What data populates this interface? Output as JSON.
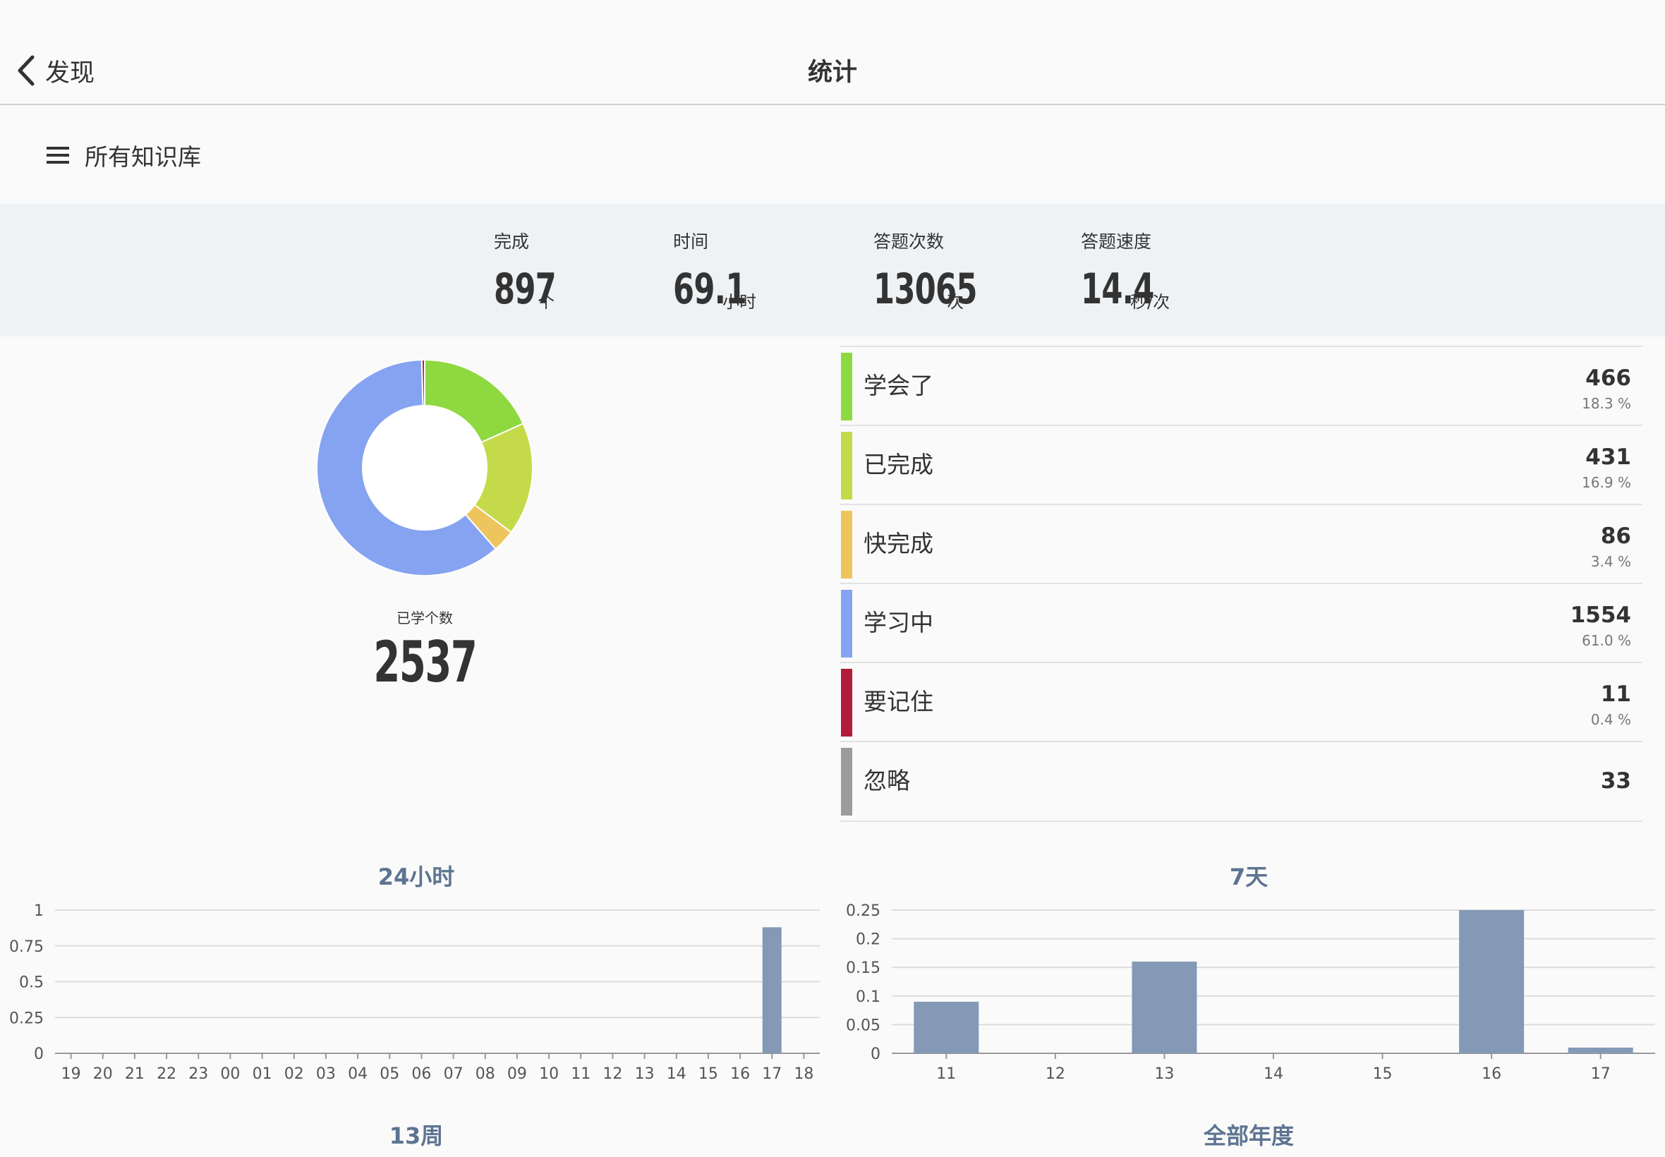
{
  "nav": {
    "back_label": "发现",
    "title": "统计"
  },
  "library": {
    "label": "所有知识库"
  },
  "summary": {
    "completed": {
      "label": "完成",
      "value": "897",
      "unit": "个"
    },
    "time": {
      "label": "时间",
      "value": "69.1",
      "unit": "小时"
    },
    "answers": {
      "label": "答题次数",
      "value": "13065",
      "unit": "次"
    },
    "speed": {
      "label": "答题速度",
      "value": "14.4",
      "unit": "秒/次"
    }
  },
  "donut": {
    "caption": "已学个数",
    "total": "2537"
  },
  "legend": {
    "items": [
      {
        "name": "学会了",
        "count": "466",
        "pct": "18.3 %",
        "color": "#8ed93f"
      },
      {
        "name": "已完成",
        "count": "431",
        "pct": "16.9 %",
        "color": "#c5da4a"
      },
      {
        "name": "快完成",
        "count": "86",
        "pct": "3.4 %",
        "color": "#eec45d"
      },
      {
        "name": "学习中",
        "count": "1554",
        "pct": "61.0 %",
        "color": "#85a3f0"
      },
      {
        "name": "要记住",
        "count": "11",
        "pct": "0.4 %",
        "color": "#b31b3c"
      },
      {
        "name": "忽略",
        "count": "33",
        "pct": "",
        "color": "#9c9c9c"
      }
    ]
  },
  "chart_data": [
    {
      "type": "pie",
      "style": "donut",
      "categories": [
        "学会了",
        "已完成",
        "快完成",
        "学习中",
        "要记住"
      ],
      "values": [
        466,
        431,
        86,
        1554,
        11
      ],
      "colors": [
        "#8ed93f",
        "#c5da4a",
        "#eec45d",
        "#85a3f0",
        "#b31b3c"
      ]
    },
    {
      "type": "bar",
      "title": "24小时",
      "categories": [
        "19",
        "20",
        "21",
        "22",
        "23",
        "00",
        "01",
        "02",
        "03",
        "04",
        "05",
        "06",
        "07",
        "08",
        "09",
        "10",
        "11",
        "12",
        "13",
        "14",
        "15",
        "16",
        "17",
        "18"
      ],
      "values": [
        0,
        0,
        0,
        0,
        0,
        0,
        0,
        0,
        0,
        0,
        0,
        0,
        0,
        0,
        0,
        0,
        0,
        0,
        0,
        0,
        0,
        0,
        0.88,
        0
      ],
      "yticks": [
        "0",
        "0.25",
        "0.5",
        "0.75",
        "1"
      ],
      "ylim": [
        0,
        1
      ],
      "color": "#8399b5"
    },
    {
      "type": "bar",
      "title": "7天",
      "categories": [
        "11",
        "12",
        "13",
        "14",
        "15",
        "16",
        "17"
      ],
      "values": [
        0.09,
        0,
        0.16,
        0,
        0,
        0.25,
        0.01
      ],
      "yticks": [
        "0",
        "0.05",
        "0.1",
        "0.15",
        "0.2",
        "0.25"
      ],
      "ylim": [
        0,
        0.25
      ],
      "color": "#8399b5"
    }
  ],
  "more_charts": {
    "weeks_title": "13周",
    "year_title": "全部年度"
  }
}
